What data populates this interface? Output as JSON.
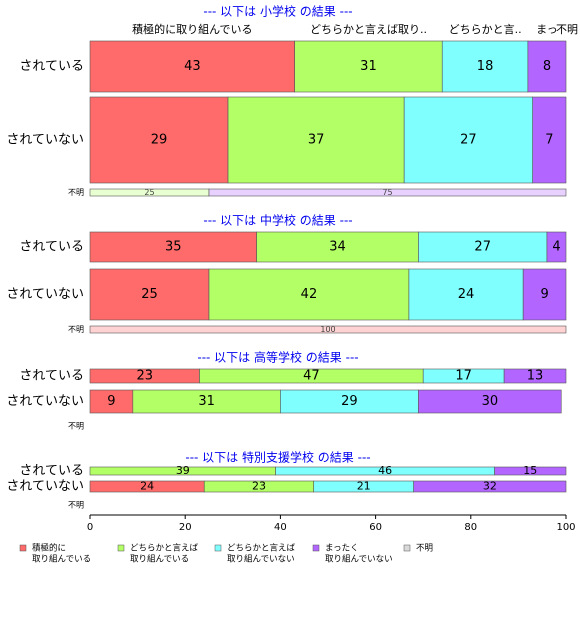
{
  "chart_data": {
    "type": "bar",
    "stacked": true,
    "xlim": [
      0,
      100
    ],
    "xticks": [
      0,
      20,
      40,
      60,
      80,
      100
    ],
    "series": [
      {
        "name": [
          "積極的に",
          "取り組んでいる"
        ],
        "color": "#ff6b6b"
      },
      {
        "name": [
          "どちらかと言えば",
          "取り組んでいる"
        ],
        "color": "#b3ff66"
      },
      {
        "name": [
          "どちらかと言えば",
          "取り組んでいない"
        ],
        "color": "#80ffff"
      },
      {
        "name": [
          "まったく",
          "取り組んでいない"
        ],
        "color": "#b266ff"
      },
      {
        "name": [
          "不明"
        ],
        "color": "#d9d9d9"
      }
    ],
    "header_labels": [
      "積極的に取り組んでいる",
      "どちらかと言えば取り..",
      "どちらかと言..",
      "まっ",
      "不明"
    ],
    "panels": [
      {
        "title": "--- 以下は 小学校 の結果 ---",
        "categories": [
          "されている",
          "されていない",
          "不明"
        ],
        "values": [
          [
            43,
            31,
            18,
            8
          ],
          [
            29,
            37,
            27,
            7
          ],
          [
            null,
            25,
            null,
            75
          ]
        ]
      },
      {
        "title": "--- 以下は 中学校 の結果 ---",
        "categories": [
          "されている",
          "されていない",
          "不明"
        ],
        "values": [
          [
            35,
            34,
            27,
            4
          ],
          [
            25,
            42,
            24,
            9
          ],
          [
            100,
            null,
            null,
            null
          ]
        ]
      },
      {
        "title": "--- 以下は 高等学校 の結果 ---",
        "categories": [
          "されている",
          "されていない",
          "不明"
        ],
        "values": [
          [
            23,
            47,
            17,
            13
          ],
          [
            9,
            31,
            29,
            30
          ],
          [
            null,
            null,
            null,
            null
          ]
        ]
      },
      {
        "title": "--- 以下は 特別支援学校 の結果 ---",
        "categories": [
          "されている",
          "されていない",
          "不明"
        ],
        "values": [
          [
            null,
            39,
            46,
            15
          ],
          [
            24,
            23,
            21,
            32
          ],
          [
            null,
            null,
            null,
            null
          ]
        ]
      }
    ]
  }
}
